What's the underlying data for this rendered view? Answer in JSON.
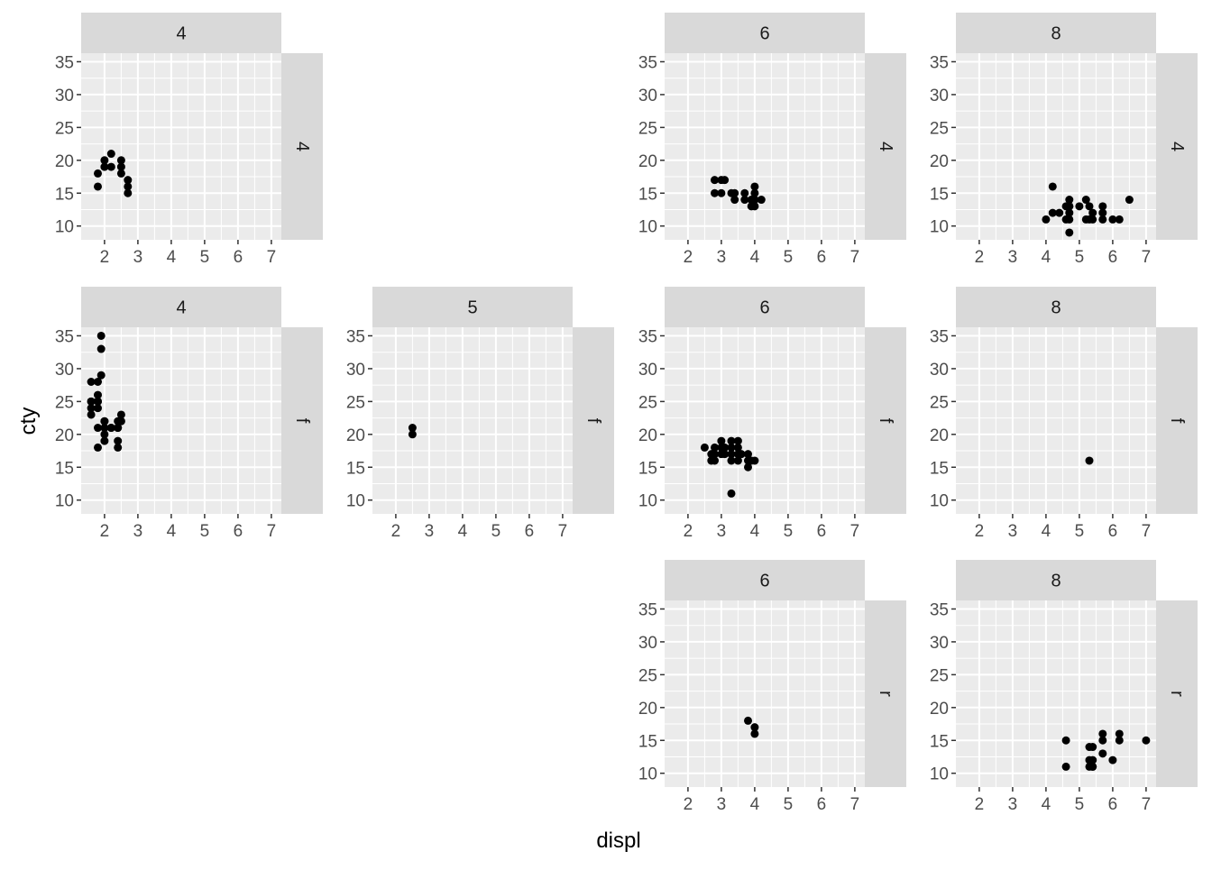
{
  "figure": {
    "xlabel": "displ",
    "ylabel": "cty"
  },
  "chart_data": {
    "type": "scatter",
    "facet": "grid",
    "col_var_levels": [
      "4",
      "5",
      "6",
      "8"
    ],
    "row_var_levels": [
      "4",
      "f",
      "r"
    ],
    "xlim": [
      1.3,
      7.3
    ],
    "ylim": [
      7.9,
      36.3
    ],
    "xticks": [
      2,
      3,
      4,
      5,
      6,
      7
    ],
    "yticks": [
      10,
      15,
      20,
      25,
      30,
      35
    ],
    "xlabel": "displ",
    "ylabel": "cty",
    "panels": [
      {
        "row": "4",
        "col": "4",
        "x": [
          1.8,
          1.8,
          2.0,
          2.0,
          2.2,
          2.2,
          2.5,
          2.5,
          2.5,
          2.7,
          2.7,
          2.7
        ],
        "y": [
          18,
          16,
          20,
          19,
          21,
          19,
          20,
          18,
          19,
          17,
          16,
          15
        ]
      },
      {
        "row": "4",
        "col": "6",
        "x": [
          2.8,
          2.8,
          3.0,
          3.0,
          3.1,
          3.3,
          3.4,
          3.4,
          3.7,
          3.7,
          3.9,
          3.9,
          4.0,
          4.0,
          4.0,
          4.0,
          4.0,
          4.2
        ],
        "y": [
          17,
          15,
          17,
          15,
          17,
          15,
          15,
          14,
          15,
          14,
          14,
          13,
          16,
          15,
          14,
          13,
          14,
          14
        ]
      },
      {
        "row": "4",
        "col": "8",
        "x": [
          4.0,
          4.2,
          4.2,
          4.4,
          4.6,
          4.6,
          4.7,
          4.7,
          4.7,
          4.7,
          4.7,
          4.7,
          5.0,
          5.2,
          5.2,
          5.3,
          5.3,
          5.4,
          5.4,
          5.7,
          5.7,
          5.7,
          6.0,
          6.2,
          6.5
        ],
        "y": [
          11,
          16,
          12,
          12,
          13,
          11,
          14,
          13,
          12,
          11,
          9,
          13,
          13,
          11,
          14,
          11,
          13,
          11,
          12,
          11,
          12,
          13,
          11,
          11,
          14
        ]
      },
      {
        "row": "f",
        "col": "4",
        "x": [
          1.6,
          1.6,
          1.6,
          1.6,
          1.6,
          1.8,
          1.8,
          1.8,
          1.8,
          1.8,
          1.8,
          1.8,
          1.9,
          1.9,
          1.9,
          2.0,
          2.0,
          2.0,
          2.0,
          2.0,
          2.2,
          2.2,
          2.4,
          2.4,
          2.4,
          2.4,
          2.4,
          2.5,
          2.5
        ],
        "y": [
          28,
          25,
          24,
          23,
          25,
          28,
          26,
          25,
          24,
          21,
          18,
          25,
          35,
          33,
          29,
          22,
          21,
          20,
          19,
          22,
          21,
          21,
          22,
          21,
          19,
          18,
          21,
          22,
          23
        ]
      },
      {
        "row": "f",
        "col": "5",
        "x": [
          2.5,
          2.5
        ],
        "y": [
          21,
          20
        ]
      },
      {
        "row": "f",
        "col": "6",
        "x": [
          2.5,
          2.7,
          2.7,
          2.8,
          2.8,
          2.8,
          3.0,
          3.0,
          3.0,
          3.1,
          3.1,
          3.3,
          3.3,
          3.3,
          3.3,
          3.5,
          3.5,
          3.5,
          3.5,
          3.6,
          3.8,
          3.8,
          3.8,
          3.9,
          4.0,
          3.3
        ],
        "y": [
          18,
          17,
          16,
          18,
          17,
          16,
          19,
          18,
          17,
          18,
          17,
          19,
          18,
          17,
          16,
          19,
          18,
          17,
          16,
          17,
          17,
          16,
          15,
          16,
          16,
          11
        ]
      },
      {
        "row": "f",
        "col": "8",
        "x": [
          5.3
        ],
        "y": [
          16
        ]
      },
      {
        "row": "r",
        "col": "6",
        "x": [
          3.8,
          4.0,
          4.0
        ],
        "y": [
          18,
          17,
          16
        ]
      },
      {
        "row": "r",
        "col": "8",
        "x": [
          4.6,
          4.6,
          5.3,
          5.3,
          5.3,
          5.4,
          5.4,
          5.4,
          5.4,
          5.7,
          5.7,
          5.7,
          6.0,
          6.2,
          6.2,
          7.0
        ],
        "y": [
          15,
          11,
          14,
          12,
          11,
          14,
          12,
          11,
          11,
          16,
          15,
          13,
          12,
          16,
          15,
          15
        ]
      }
    ]
  }
}
